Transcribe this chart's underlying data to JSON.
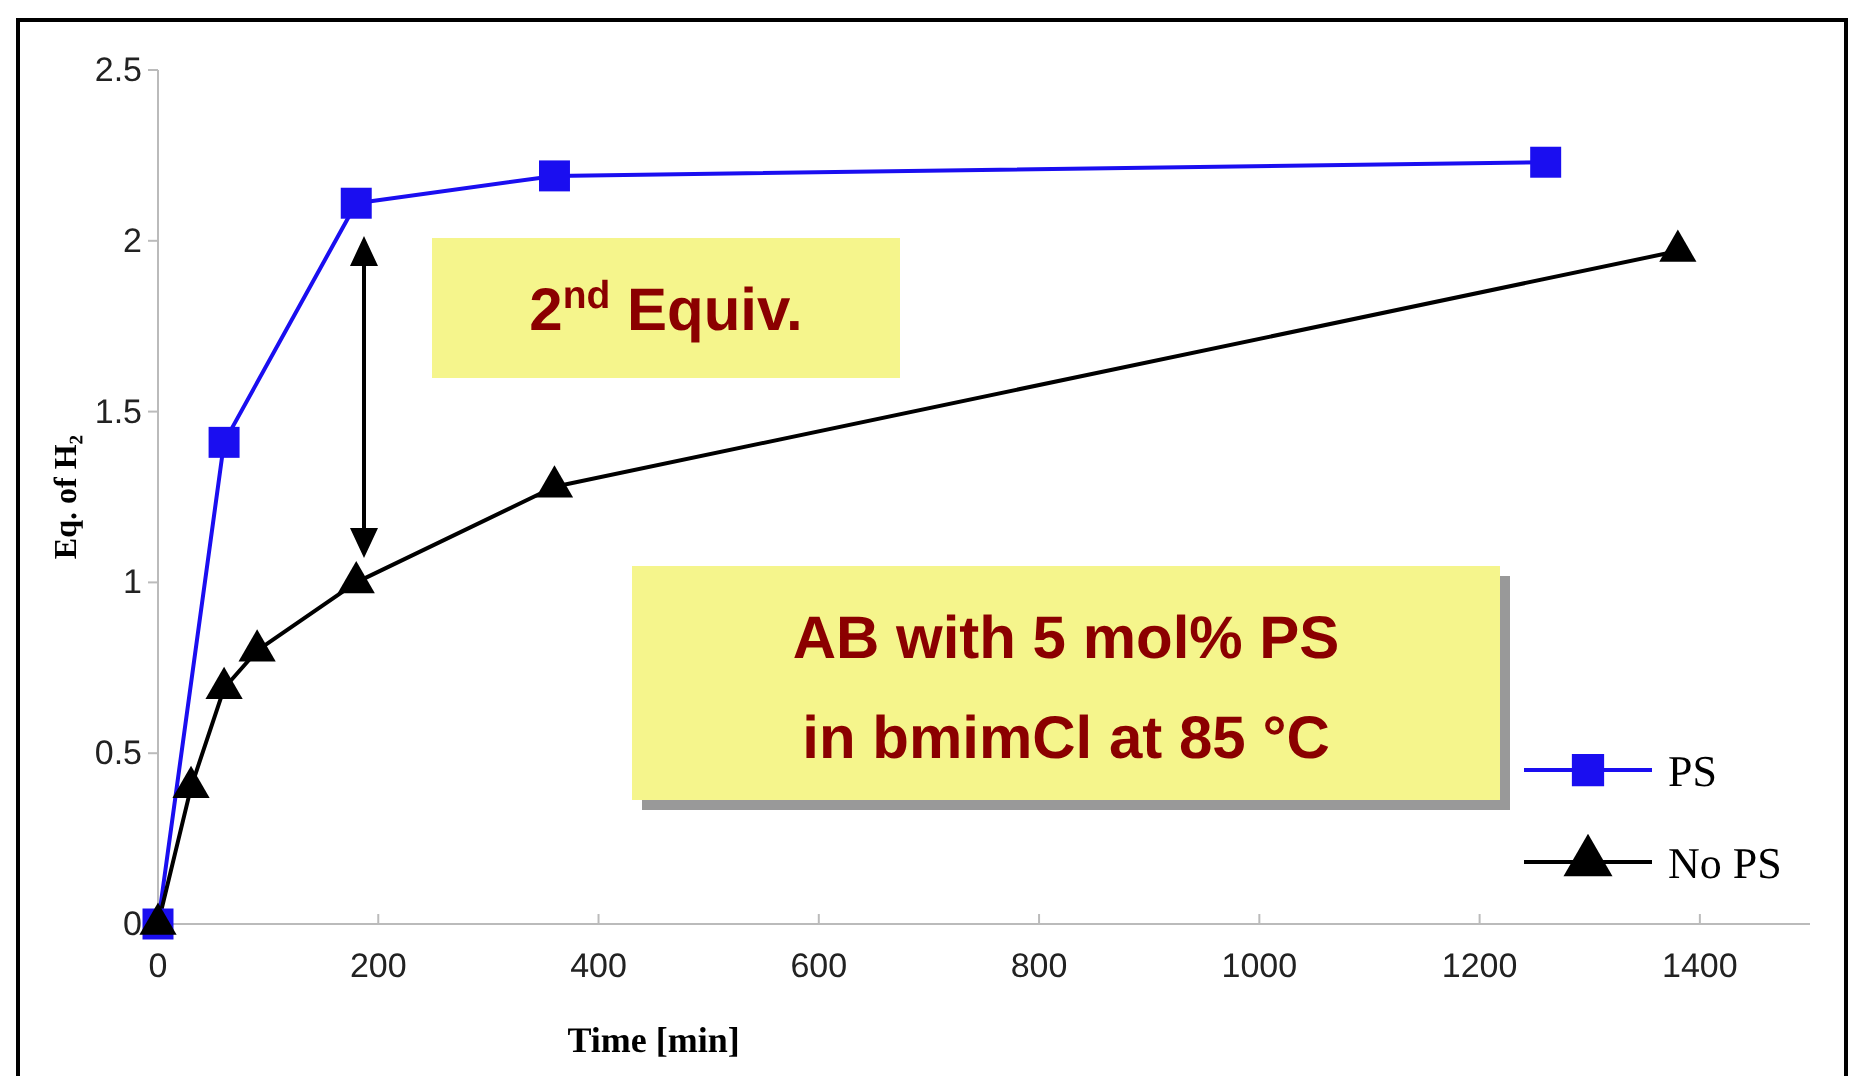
{
  "chart_data": {
    "type": "line",
    "xlabel": "Time [min]",
    "ylabel": "Eq. of H₂",
    "xlim": [
      0,
      1500
    ],
    "xticks": [
      0,
      200,
      400,
      600,
      800,
      1000,
      1200,
      1400
    ],
    "ylim": [
      0,
      2.5
    ],
    "yticks": [
      0,
      0.5,
      1,
      1.5,
      2,
      2.5
    ],
    "series": [
      {
        "name": "PS",
        "color": "#1a0ef0",
        "marker": "square",
        "x": [
          0,
          60,
          180,
          360,
          1260
        ],
        "values": [
          0,
          1.41,
          2.11,
          2.19,
          2.23
        ]
      },
      {
        "name": "No PS",
        "color": "#000000",
        "marker": "triangle",
        "x": [
          0,
          30,
          60,
          90,
          180,
          360,
          1380
        ],
        "values": [
          0,
          0.4,
          0.69,
          0.8,
          1.0,
          1.28,
          1.97
        ]
      }
    ],
    "annotations": [
      "2$^{nd}$ Equiv.",
      "AB with 5 mol% PS in bmimCl at 85 °C"
    ],
    "grid": false,
    "legend": "bottom right"
  }
}
